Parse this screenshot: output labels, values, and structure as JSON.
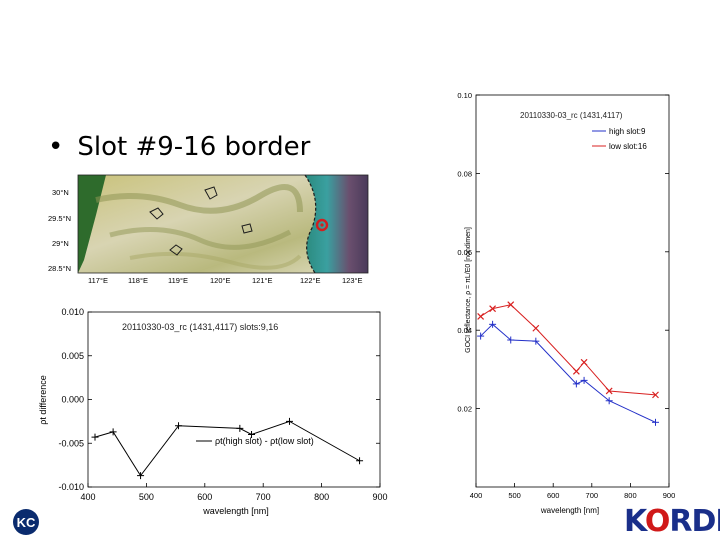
{
  "slide": {
    "title": "Slot #9-16 border",
    "bullet": "•"
  },
  "map": {
    "lat_labels": [
      "30°N",
      "29.5°N",
      "29°N",
      "28.5°N"
    ],
    "lon_labels": [
      "117°E",
      "118°E",
      "119°E",
      "120°E",
      "121°E",
      "122°E",
      "123°E"
    ],
    "marker_color": "#d21f1f"
  },
  "logos": {
    "left": "KC",
    "right_prefix": "K",
    "right_suffix": "RDI",
    "right_accent": "O"
  },
  "chart_data": [
    {
      "type": "line",
      "title": "20110330-03_rc   (1431,4117) slots:9,16",
      "xlabel": "wavelength [nm]",
      "ylabel": "ρt difference",
      "xlim": [
        400,
        900
      ],
      "ylim": [
        -0.01,
        0.01
      ],
      "xticks": [
        "400",
        "500",
        "600",
        "700",
        "800",
        "900"
      ],
      "yticks": [
        "0.010",
        "0.005",
        "0.000",
        "-0.005",
        "-0.010"
      ],
      "series": [
        {
          "name": "ρt(high slot) - ρt(low slot)",
          "color": "#000000",
          "x": [
            412,
            443,
            490,
            555,
            660,
            680,
            745,
            865
          ],
          "y": [
            -0.0043,
            -0.0037,
            -0.0087,
            -0.003,
            -0.0033,
            -0.004,
            -0.0025,
            -0.007
          ]
        }
      ]
    },
    {
      "type": "line",
      "title": "20110330-03_rc   (1431,4117)",
      "xlabel": "wavelength [nm]",
      "ylabel": "GOCI reflectance, ρ = πL/E0 [nondimen]",
      "xlim": [
        400,
        900
      ],
      "ylim": [
        0.0,
        0.1
      ],
      "xticks": [
        "400",
        "500",
        "600",
        "700",
        "800",
        "900"
      ],
      "yticks": [
        "0.10",
        "0.08",
        "0.06",
        "0.04",
        "0.02"
      ],
      "series": [
        {
          "name": "high slot:9",
          "color": "#2330c8",
          "x": [
            412,
            443,
            490,
            555,
            660,
            680,
            745,
            865
          ],
          "y": [
            0.0385,
            0.0415,
            0.0375,
            0.0372,
            0.0263,
            0.0272,
            0.022,
            0.0165
          ]
        },
        {
          "name": "low slot:16",
          "color": "#d82020",
          "x": [
            412,
            443,
            490,
            555,
            660,
            680,
            745,
            865
          ],
          "y": [
            0.0435,
            0.0455,
            0.0465,
            0.0405,
            0.0295,
            0.0318,
            0.0245,
            0.0235
          ]
        }
      ]
    }
  ]
}
